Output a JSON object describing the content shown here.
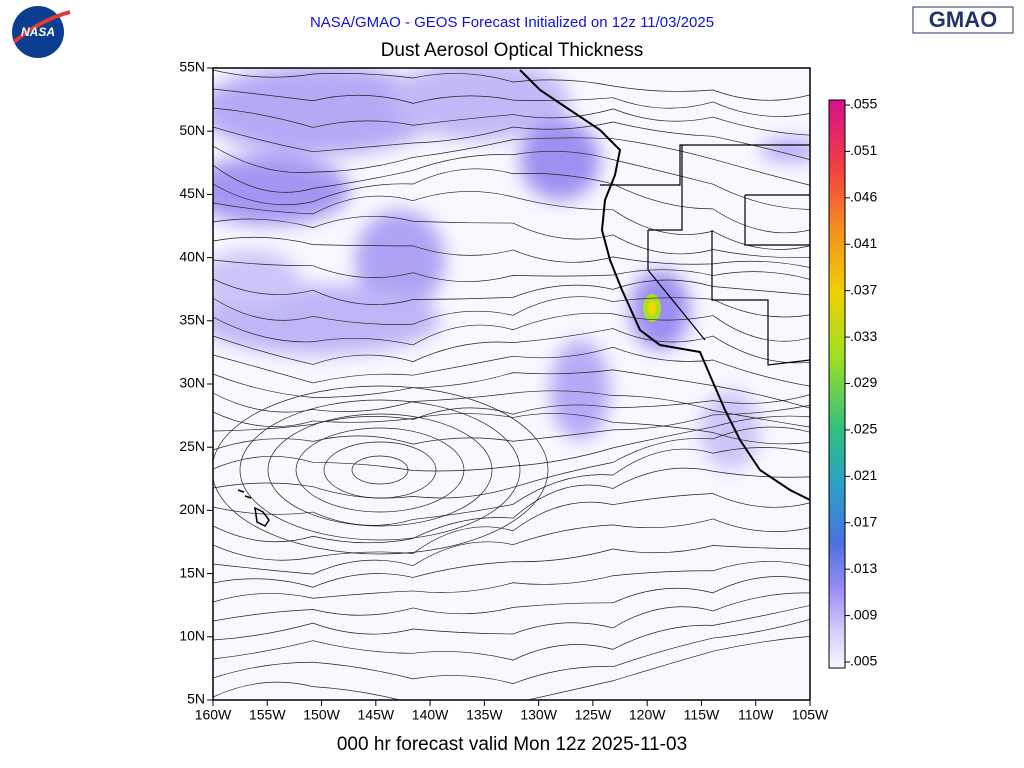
{
  "header": "NASA/GMAO - GEOS Forecast Initialized on 12z 11/03/2025",
  "title": "Dust Aerosol Optical Thickness",
  "footer": "000 hr forecast valid Mon 12z 2025-11-03",
  "logo_left": "NASA",
  "logo_right": "GMAO",
  "map": {
    "xlim": [
      -160,
      -105
    ],
    "ylim": [
      5,
      55
    ],
    "xticks": [
      {
        "value": -160,
        "label": "160W"
      },
      {
        "value": -155,
        "label": "155W"
      },
      {
        "value": -150,
        "label": "150W"
      },
      {
        "value": -145,
        "label": "145W"
      },
      {
        "value": -140,
        "label": "140W"
      },
      {
        "value": -135,
        "label": "135W"
      },
      {
        "value": -130,
        "label": "130W"
      },
      {
        "value": -125,
        "label": "125W"
      },
      {
        "value": -120,
        "label": "120W"
      },
      {
        "value": -115,
        "label": "115W"
      },
      {
        "value": -110,
        "label": "110W"
      },
      {
        "value": -105,
        "label": "105W"
      }
    ],
    "yticks": [
      {
        "value": 55,
        "label": "55N"
      },
      {
        "value": 50,
        "label": "50N"
      },
      {
        "value": 45,
        "label": "45N"
      },
      {
        "value": 40,
        "label": "40N"
      },
      {
        "value": 35,
        "label": "35N"
      },
      {
        "value": 30,
        "label": "30N"
      },
      {
        "value": 25,
        "label": "25N"
      },
      {
        "value": 20,
        "label": "20N"
      },
      {
        "value": 15,
        "label": "15N"
      },
      {
        "value": 10,
        "label": "10N"
      },
      {
        "value": 5,
        "label": "5N"
      }
    ]
  },
  "colorbar": {
    "labels": [
      ".055",
      ".051",
      ".046",
      ".041",
      ".037",
      ".033",
      ".029",
      ".025",
      ".021",
      ".017",
      ".013",
      ".009",
      ".005"
    ]
  }
}
